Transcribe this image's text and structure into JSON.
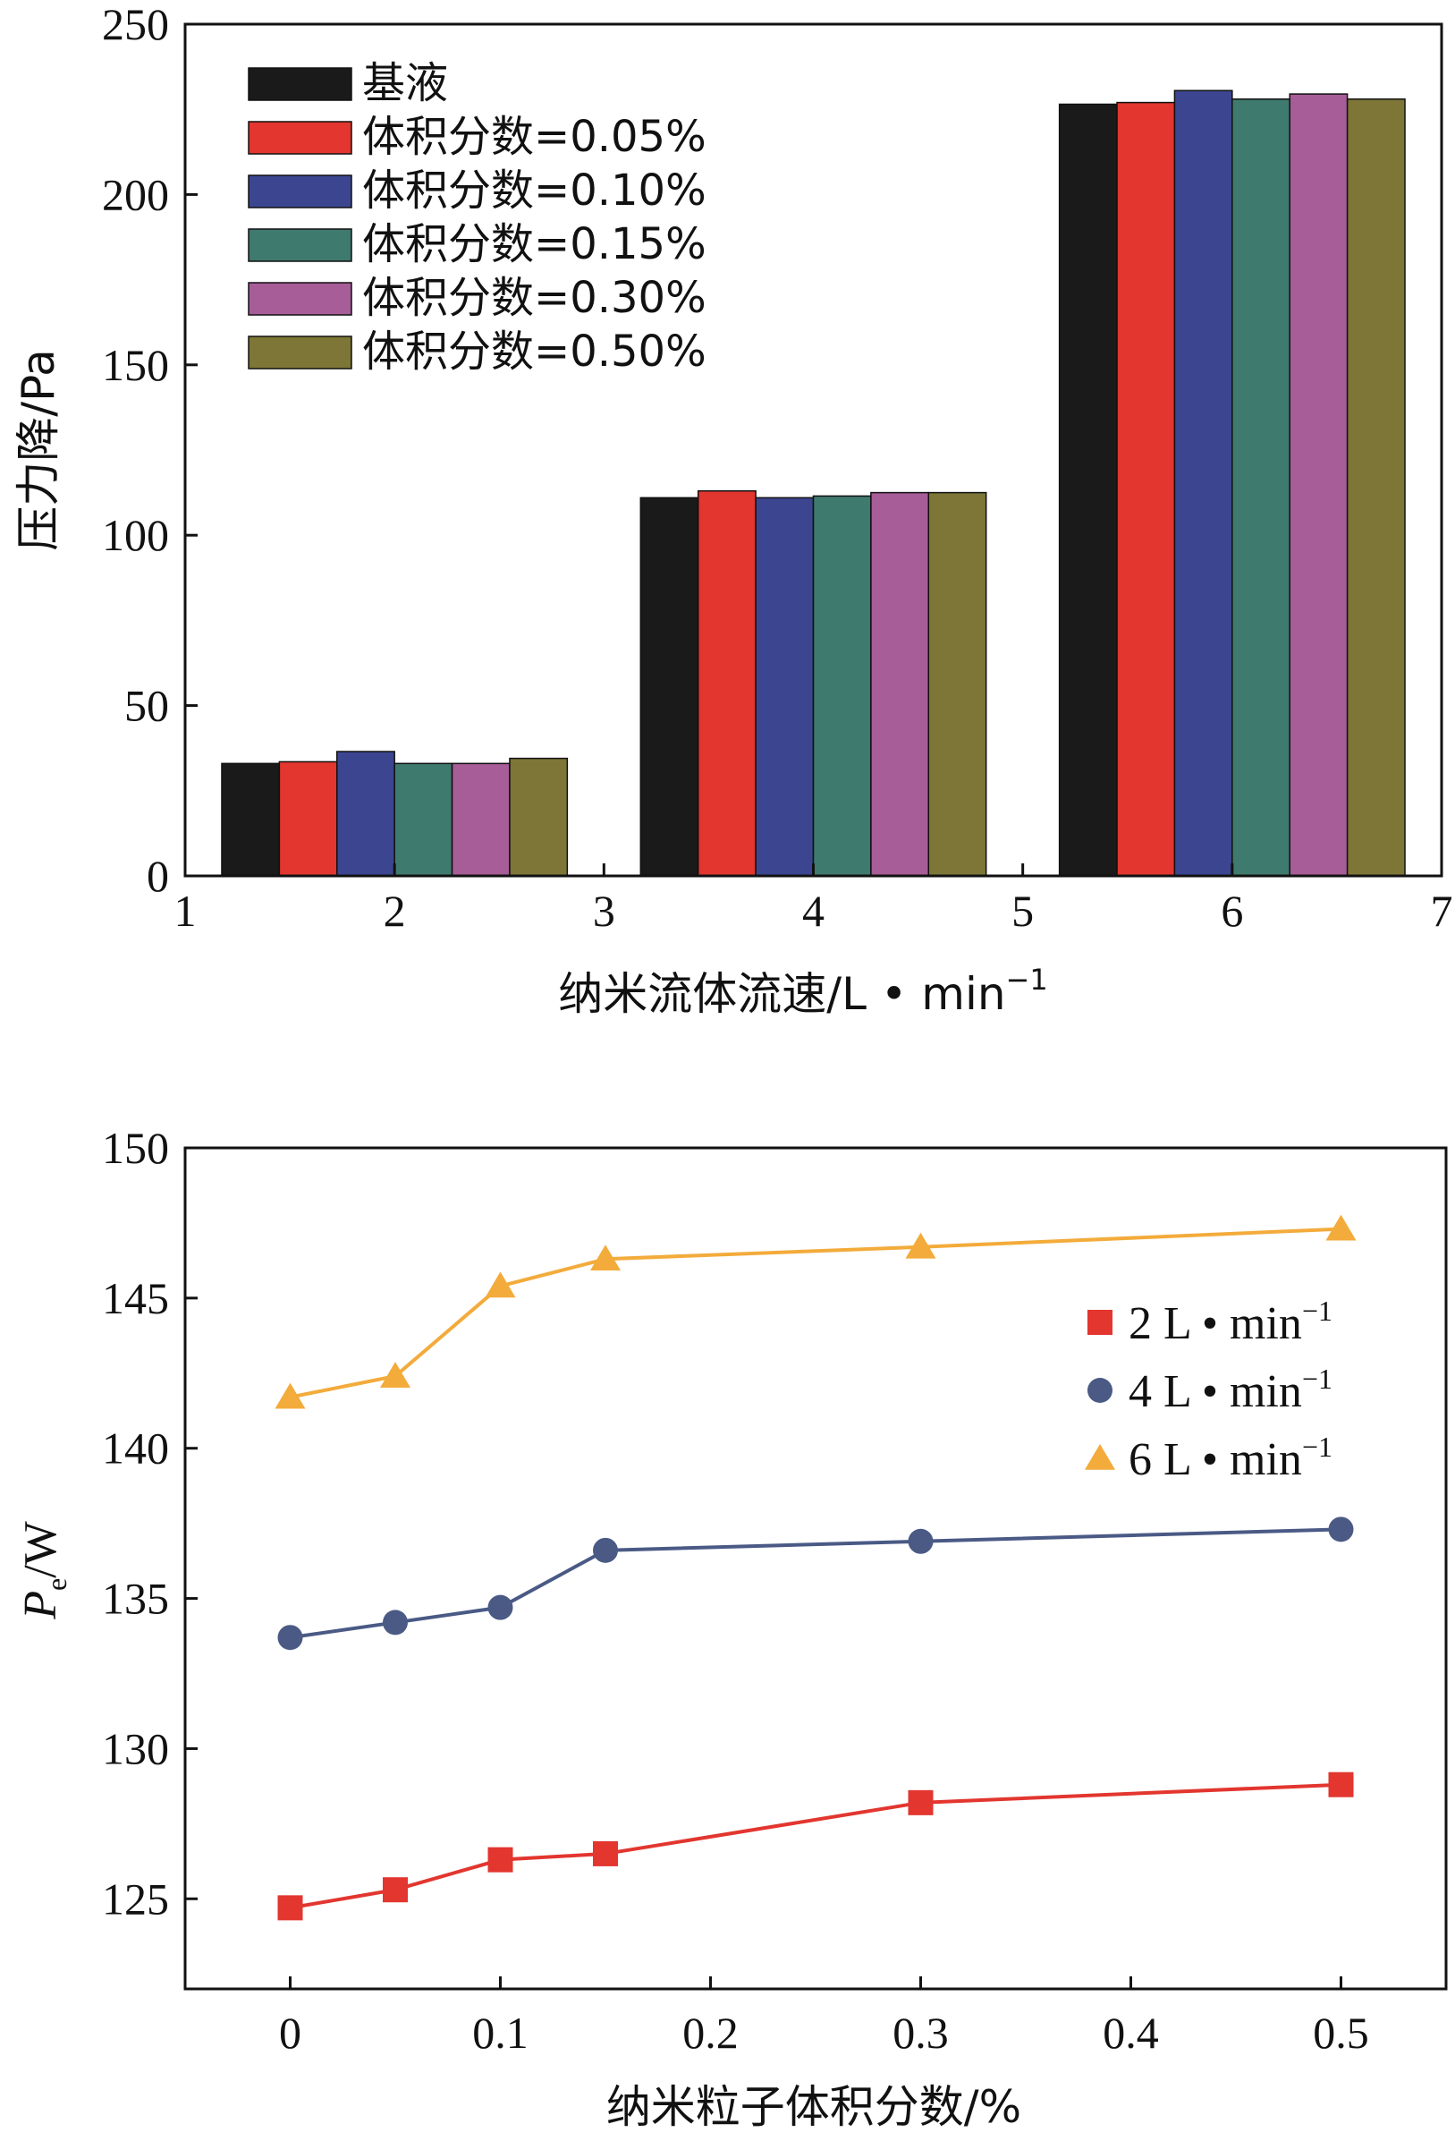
{
  "chart_data": [
    {
      "type": "bar",
      "xlabel": "纳米流体流速/L • min",
      "xlabel_sup": "−1",
      "ylabel": "压力降/Pa",
      "xlim": [
        1,
        7
      ],
      "ylim": [
        0,
        250
      ],
      "x_ticks": [
        "1",
        "2",
        "3",
        "4",
        "5",
        "6",
        "7"
      ],
      "y_ticks": [
        "0",
        "50",
        "100",
        "150",
        "200",
        "250"
      ],
      "categories": [
        2,
        4,
        6
      ],
      "legend_position": "top-left",
      "series": [
        {
          "name": "基液",
          "color": "#1a1a1a",
          "values": [
            33,
            111,
            226.5
          ]
        },
        {
          "name": "体积分数=0.05%",
          "color": "#e2362f",
          "values": [
            33.5,
            113,
            227
          ]
        },
        {
          "name": "体积分数=0.10%",
          "color": "#3c4690",
          "values": [
            36.5,
            111,
            230.5
          ]
        },
        {
          "name": "体积分数=0.15%",
          "color": "#3f7a6e",
          "values": [
            33,
            111.5,
            228
          ]
        },
        {
          "name": "体积分数=0.30%",
          "color": "#a75d98",
          "values": [
            33,
            112.5,
            229.5
          ]
        },
        {
          "name": "体积分数=0.50%",
          "color": "#7d7636",
          "values": [
            34.5,
            112.5,
            228
          ]
        }
      ]
    },
    {
      "type": "line",
      "xlabel": "纳米粒子体积分数/%",
      "ylabel_main": "P",
      "ylabel_sub": "e",
      "ylabel_unit": "/W",
      "xlim": [
        -0.05,
        0.55
      ],
      "ylim": [
        122,
        150
      ],
      "x_ticks": [
        "0",
        "0.1",
        "0.2",
        "0.3",
        "0.4",
        "0.5"
      ],
      "y_ticks": [
        "125",
        "130",
        "135",
        "140",
        "145",
        "150"
      ],
      "x": [
        0,
        0.05,
        0.1,
        0.15,
        0.3,
        0.5
      ],
      "legend_position": "right",
      "series": [
        {
          "name": "2 L • min",
          "name_sup": "−1",
          "marker": "square",
          "color": "#e2362f",
          "values": [
            124.7,
            125.3,
            126.3,
            126.5,
            128.2,
            128.8
          ]
        },
        {
          "name": "4 L • min",
          "name_sup": "−1",
          "marker": "circle",
          "color": "#4a5a85",
          "values": [
            133.7,
            134.2,
            134.7,
            136.6,
            136.9,
            137.3
          ]
        },
        {
          "name": "6 L • min",
          "name_sup": "−1",
          "marker": "triangle",
          "color": "#f3ab3b",
          "values": [
            141.7,
            142.4,
            145.4,
            146.3,
            146.7,
            147.3
          ]
        }
      ]
    }
  ]
}
